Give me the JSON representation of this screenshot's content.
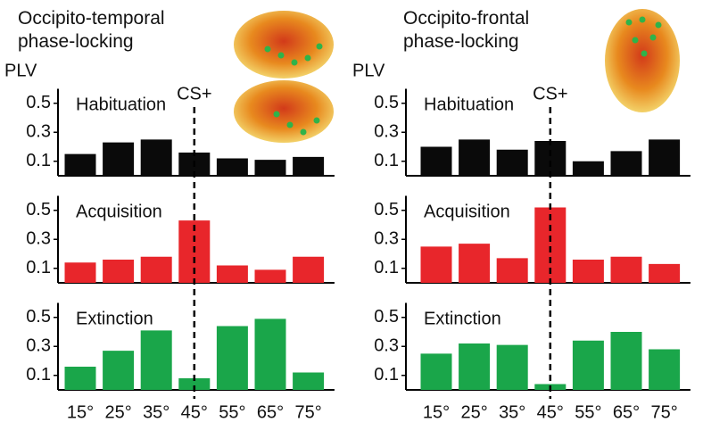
{
  "chart_data": [
    {
      "type": "bar",
      "title": "Occipito-temporal\nphase-locking",
      "ylabel": "PLV",
      "annotation": "CS+",
      "categories": [
        "15°",
        "25°",
        "35°",
        "45°",
        "55°",
        "65°",
        "75°"
      ],
      "ylim": [
        0,
        0.6
      ],
      "yticks": [
        0.1,
        0.3,
        0.5
      ],
      "series": [
        {
          "name": "Habituation",
          "color": "#0a0a0a",
          "values": [
            0.15,
            0.23,
            0.25,
            0.16,
            0.12,
            0.11,
            0.13
          ]
        },
        {
          "name": "Acquisition",
          "color": "#e8262b",
          "values": [
            0.14,
            0.16,
            0.18,
            0.43,
            0.12,
            0.09,
            0.18
          ]
        },
        {
          "name": "Extinction",
          "color": "#1aa64a",
          "values": [
            0.16,
            0.27,
            0.41,
            0.08,
            0.44,
            0.49,
            0.12
          ]
        }
      ]
    },
    {
      "type": "bar",
      "title": "Occipito-frontal\nphase-locking",
      "ylabel": "PLV",
      "annotation": "CS+",
      "categories": [
        "15°",
        "25°",
        "35°",
        "45°",
        "55°",
        "65°",
        "75°"
      ],
      "ylim": [
        0,
        0.6
      ],
      "yticks": [
        0.1,
        0.3,
        0.5
      ],
      "series": [
        {
          "name": "Habituation",
          "color": "#0a0a0a",
          "values": [
            0.2,
            0.25,
            0.18,
            0.24,
            0.1,
            0.17,
            0.25
          ]
        },
        {
          "name": "Acquisition",
          "color": "#e8262b",
          "values": [
            0.25,
            0.27,
            0.17,
            0.52,
            0.16,
            0.18,
            0.13
          ]
        },
        {
          "name": "Extinction",
          "color": "#1aa64a",
          "values": [
            0.25,
            0.32,
            0.31,
            0.04,
            0.34,
            0.4,
            0.28
          ]
        }
      ]
    }
  ]
}
